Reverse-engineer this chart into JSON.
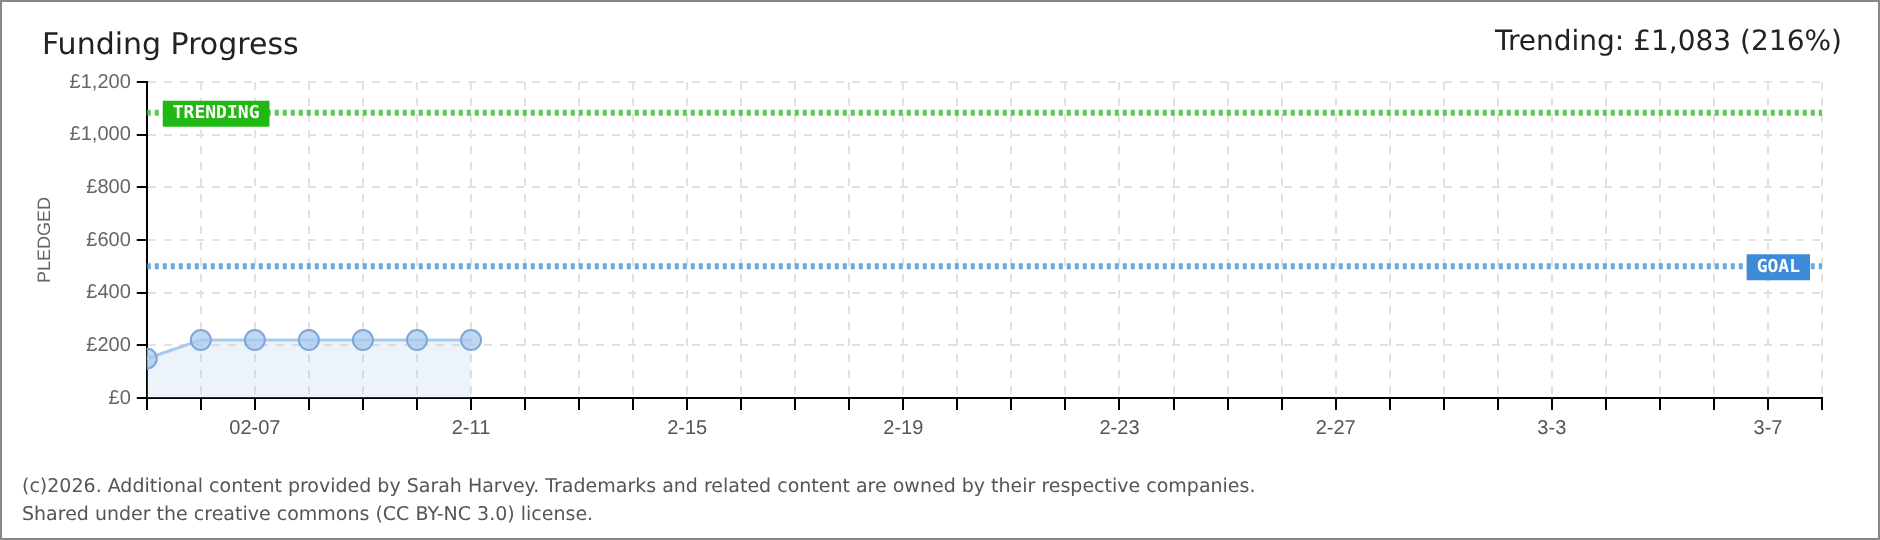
{
  "chart_data": {
    "type": "area",
    "title": "Funding Progress",
    "ylabel": "PLEDGED",
    "x": [
      "--02-05",
      "--02-06",
      "--02-07",
      "--02-08",
      "--02-09",
      "--02-10",
      "--02-11"
    ],
    "series": [
      {
        "color": "#a9c9ee",
        "values": [
          150,
          220,
          220,
          220,
          220,
          220,
          220
        ]
      }
    ],
    "xlim": [
      "--02-05",
      "--03-08"
    ],
    "xticks": [
      {
        "value": "--02-05",
        "label": null
      },
      {
        "value": "--02-06",
        "label": null
      },
      {
        "value": "--02-07",
        "label": "02-07"
      },
      {
        "value": "--02-08",
        "label": null
      },
      {
        "value": "--02-09",
        "label": null
      },
      {
        "value": "--02-10",
        "label": null
      },
      {
        "value": "--02-11",
        "label": "2-11"
      },
      {
        "value": "--02-12",
        "label": null
      },
      {
        "value": "--02-13",
        "label": null
      },
      {
        "value": "--02-14",
        "label": null
      },
      {
        "value": "--02-15",
        "label": "2-15"
      },
      {
        "value": "--02-16",
        "label": null
      },
      {
        "value": "--02-17",
        "label": null
      },
      {
        "value": "--02-18",
        "label": null
      },
      {
        "value": "--02-19",
        "label": "2-19"
      },
      {
        "value": "--02-20",
        "label": null
      },
      {
        "value": "--02-21",
        "label": null
      },
      {
        "value": "--02-22",
        "label": null
      },
      {
        "value": "--02-23",
        "label": "2-23"
      },
      {
        "value": "--02-24",
        "label": null
      },
      {
        "value": "--02-25",
        "label": null
      },
      {
        "value": "--02-26",
        "label": null
      },
      {
        "value": "--02-27",
        "label": "2-27"
      },
      {
        "value": "--02-28",
        "label": null
      },
      {
        "value": "--03-01",
        "label": null
      },
      {
        "value": "--03-02",
        "label": null
      },
      {
        "value": "--03-03",
        "label": "3-3"
      },
      {
        "value": "--03-04",
        "label": null
      },
      {
        "value": "--03-05",
        "label": null
      },
      {
        "value": "--03-06",
        "label": null
      },
      {
        "value": "--03-07",
        "label": "3-7"
      },
      {
        "value": "--03-08",
        "label": null
      }
    ],
    "ylim": [
      0,
      1200
    ],
    "yticks": [
      {
        "value": 0,
        "label": "£0"
      },
      {
        "value": 200,
        "label": "£200"
      },
      {
        "value": 400,
        "label": "£400"
      },
      {
        "value": 600,
        "label": "£600"
      },
      {
        "value": 800,
        "label": "£800"
      },
      {
        "value": 1000,
        "label": "£1,000"
      },
      {
        "value": 1200,
        "label": "£1,200"
      }
    ],
    "grid": true,
    "marker": "circle",
    "legend": false,
    "ref_lines": [
      {
        "axis": "y",
        "value": 1083,
        "label": "TRENDING",
        "color": "#22b814",
        "line_style": "dotted"
      },
      {
        "axis": "y",
        "value": 500,
        "label": "GOAL",
        "color": "#3d8ad8",
        "line_style": "dotted"
      }
    ],
    "annotations": [
      "Trending: £1,083 (216%)",
      "(c)2026. Additional content provided by Sarah Harvey. Trademarks and related content are owned by their respective companies.",
      "Shared under the creative commons (CC BY-NC 3.0) license."
    ]
  }
}
